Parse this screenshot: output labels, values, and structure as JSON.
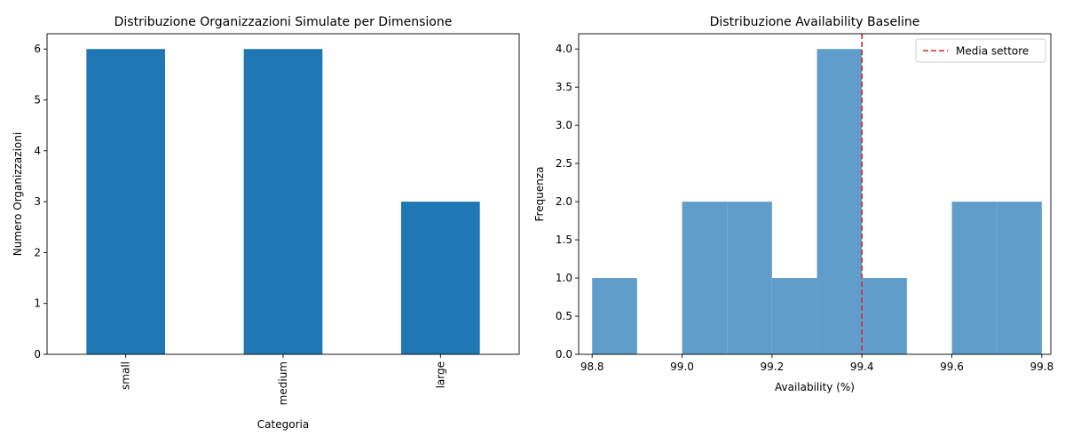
{
  "colors": {
    "bar": "#1f77b4",
    "hist": "#5f9ecb",
    "mean_line": "#d62728",
    "axis": "#000000"
  },
  "chart_data": [
    {
      "type": "bar",
      "title": "Distribuzione Organizzazioni Simulate per Dimensione",
      "xlabel": "Categoria",
      "ylabel": "Numero Organizzazioni",
      "categories": [
        "small",
        "medium",
        "large"
      ],
      "values": [
        6,
        6,
        3
      ],
      "ylim": [
        0,
        6.3
      ],
      "yticks": [
        "0",
        "1",
        "2",
        "3",
        "4",
        "5",
        "6"
      ],
      "tick_label_rotation": "vertical",
      "grid": false,
      "legend": null
    },
    {
      "type": "bar",
      "title": "Distribuzione Availability Baseline",
      "xlabel": "Availability (%)",
      "ylabel": "Frequenza",
      "bins": [
        {
          "from": 98.8,
          "to": 98.9,
          "count": 1
        },
        {
          "from": 98.9,
          "to": 99.0,
          "count": 0
        },
        {
          "from": 99.0,
          "to": 99.1,
          "count": 2
        },
        {
          "from": 99.1,
          "to": 99.2,
          "count": 2
        },
        {
          "from": 99.2,
          "to": 99.3,
          "count": 1
        },
        {
          "from": 99.3,
          "to": 99.4,
          "count": 4
        },
        {
          "from": 99.4,
          "to": 99.5,
          "count": 1
        },
        {
          "from": 99.5,
          "to": 99.6,
          "count": 0
        },
        {
          "from": 99.6,
          "to": 99.7,
          "count": 2
        },
        {
          "from": 99.7,
          "to": 99.8,
          "count": 2
        }
      ],
      "xlim": [
        98.77,
        99.82
      ],
      "ylim": [
        0,
        4.2
      ],
      "xticks": [
        "98.8",
        "99.0",
        "99.2",
        "99.4",
        "99.6",
        "99.8"
      ],
      "yticks": [
        "0.0",
        "0.5",
        "1.0",
        "1.5",
        "2.0",
        "2.5",
        "3.0",
        "3.5",
        "4.0"
      ],
      "mean_line": {
        "x": 99.4,
        "label": "Media settore",
        "style": "dashed"
      },
      "legend": {
        "position": "top-right",
        "entries": [
          "Media settore"
        ]
      },
      "grid": false
    }
  ]
}
